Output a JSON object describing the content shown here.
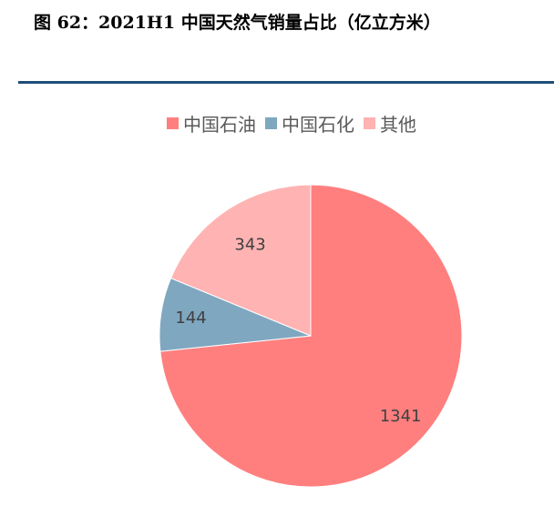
{
  "figure_title": "图 62：2021H1 中国天然气销量占比（亿立方米）",
  "colors": {
    "rule": "#1F4E79"
  },
  "chart_data": {
    "type": "pie",
    "categories": [
      "中国石油",
      "中国石化",
      "其他"
    ],
    "values": [
      1341,
      144,
      343
    ],
    "colors": [
      "#FF7F7F",
      "#7FA7C0",
      "#FFB3B3"
    ],
    "data_labels": [
      "1341",
      "144",
      "343"
    ],
    "legend_position": "top",
    "start_angle": "12 o'clock",
    "direction": "clockwise"
  }
}
